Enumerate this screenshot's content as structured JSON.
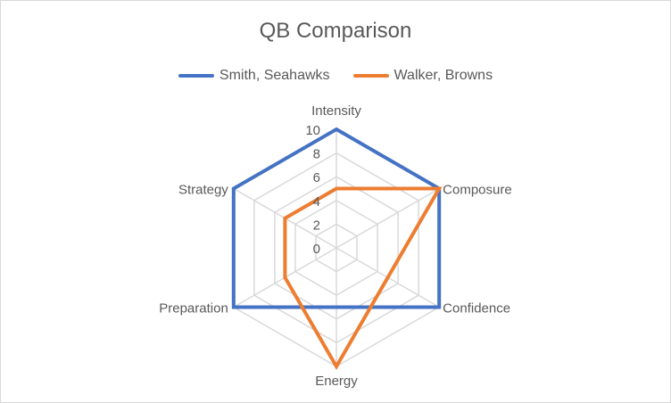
{
  "chart_data": {
    "type": "radar",
    "title": "QB Comparison",
    "categories": [
      "Intensity",
      "Composure",
      "Confidence",
      "Energy",
      "Preparation",
      "Strategy"
    ],
    "series": [
      {
        "name": "Smith, Seahawks",
        "color": "#4472c4",
        "values": [
          10,
          10,
          10,
          5,
          10,
          10
        ]
      },
      {
        "name": "Walker, Browns",
        "color": "#ed7d31",
        "values": [
          5,
          10,
          5,
          10,
          5,
          5
        ]
      }
    ],
    "rlim": [
      0,
      10
    ],
    "r_ticks": [
      "0",
      "2",
      "4",
      "6",
      "8",
      "10"
    ],
    "grid": true,
    "legend_position": "top"
  }
}
